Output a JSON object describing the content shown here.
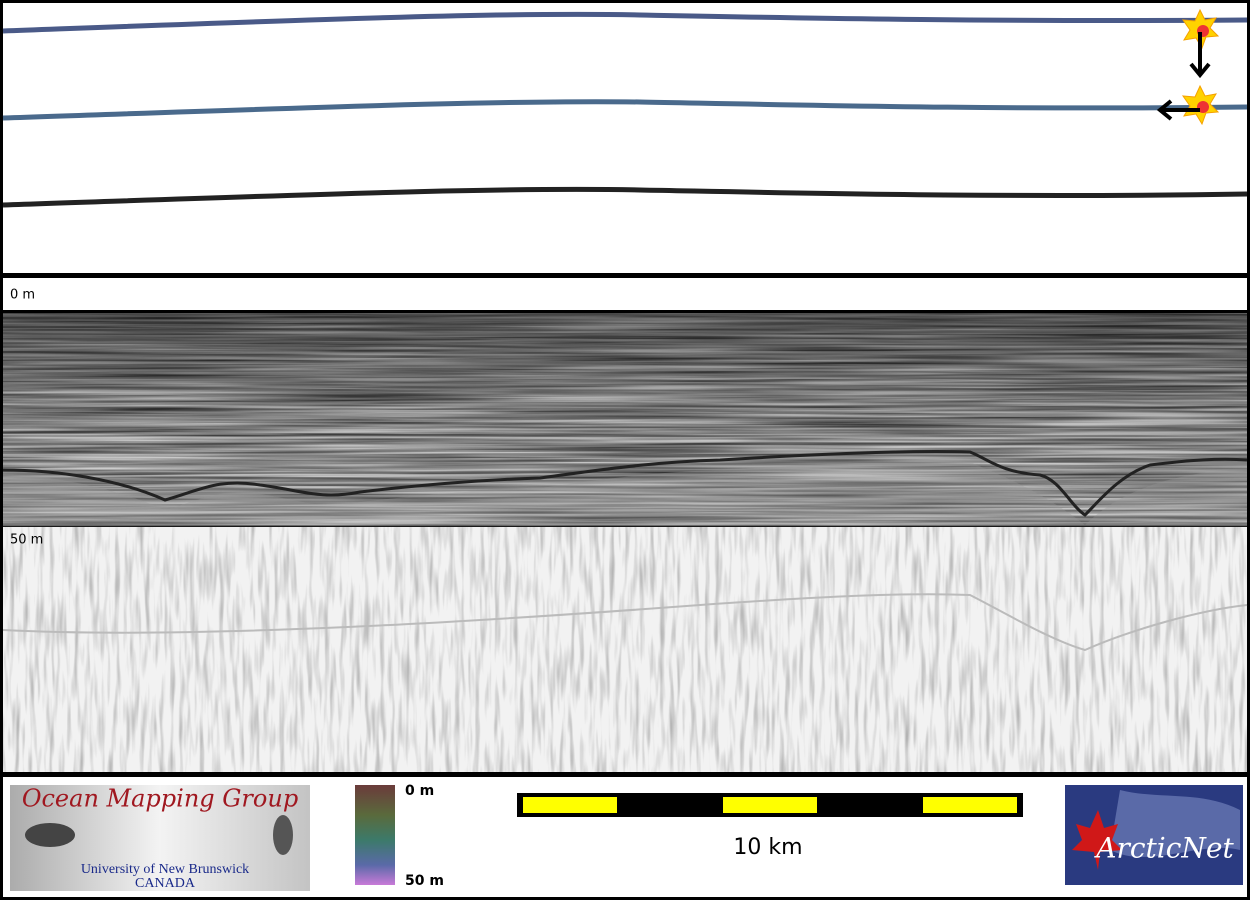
{
  "profile": {
    "top_depth_label": "0 m",
    "mid_depth_label": "50 m"
  },
  "footer": {
    "logo_left": {
      "title": "Ocean Mapping Group",
      "subtitle": "University of New Brunswick",
      "country": "CANADA"
    },
    "colorbar": {
      "min_label": "0 m",
      "max_label": "50 m"
    },
    "scale_bar": {
      "label": "10 km"
    },
    "logo_right": {
      "title": "ArcticNet"
    }
  }
}
